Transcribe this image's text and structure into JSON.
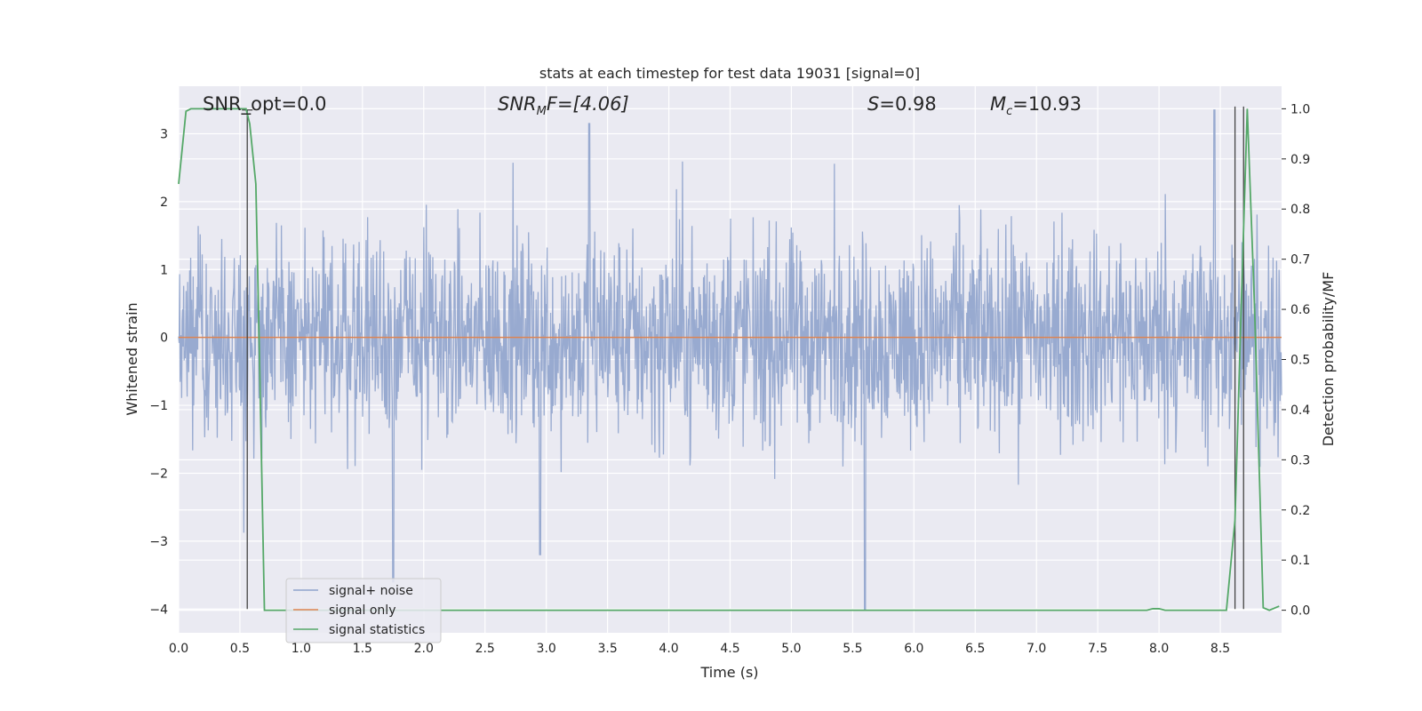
{
  "chart_data": {
    "type": "line",
    "title": "stats at each timestep for test data 19031 [signal=0]",
    "xlabel": "Time (s)",
    "ylabel": "Whitened strain",
    "y2label": "Detection probability/MF",
    "xlim": [
      0.0,
      9.0
    ],
    "ylim": [
      -4.35,
      3.7
    ],
    "y2lim": [
      -0.045,
      1.045
    ],
    "x_ticks": [
      "0.0",
      "0.5",
      "1.0",
      "1.5",
      "2.0",
      "2.5",
      "3.0",
      "3.5",
      "4.0",
      "4.5",
      "5.0",
      "5.5",
      "6.0",
      "6.5",
      "7.0",
      "7.5",
      "8.0",
      "8.5"
    ],
    "y_ticks": [
      "3",
      "2",
      "1",
      "0",
      "−1",
      "−2",
      "−3",
      "−4"
    ],
    "y2_ticks": [
      "1.0",
      "0.9",
      "0.8",
      "0.7",
      "0.6",
      "0.5",
      "0.4",
      "0.3",
      "0.2",
      "0.1",
      "0.0"
    ],
    "grid": true,
    "legend_position": "lower-left",
    "annotations": {
      "snr_opt": "SNR_opt=0.0",
      "snr_mf_base": "SNR",
      "snr_mf_sub": "M",
      "snr_mf_rest": "F=[4.06]",
      "s_base": "S",
      "s_rest": "=0.98",
      "mc_base": "M",
      "mc_sub": "c",
      "mc_rest": "=10.93"
    },
    "series": [
      {
        "name": "signal+ noise",
        "color": "#8fa3cc",
        "style": "dense-noise",
        "envelope_typical": [
          -1.8,
          1.8
        ],
        "peaks": [
          {
            "x": 1.75,
            "y": -3.6
          },
          {
            "x": 2.95,
            "y": -3.2
          },
          {
            "x": 3.35,
            "y": 3.15
          },
          {
            "x": 5.6,
            "y": -4.0
          },
          {
            "x": 8.45,
            "y": 3.35
          }
        ]
      },
      {
        "name": "signal only",
        "color": "#dd8452",
        "x": [
          0.0,
          9.0
        ],
        "y": [
          0.0,
          0.0
        ]
      },
      {
        "name": "signal statistics",
        "color": "#55a868",
        "axis": "right",
        "x": [
          0.0,
          0.06,
          0.1,
          0.2,
          0.3,
          0.4,
          0.5,
          0.55,
          0.58,
          0.63,
          0.66,
          0.7,
          1.0,
          2.0,
          3.0,
          4.0,
          5.0,
          6.0,
          7.0,
          7.9,
          7.95,
          8.0,
          8.05,
          8.2,
          8.4,
          8.55,
          8.62,
          8.67,
          8.72,
          8.78,
          8.85,
          8.9,
          8.93,
          8.98
        ],
        "y": [
          0.85,
          0.995,
          1.0,
          1.0,
          1.0,
          1.0,
          1.0,
          1.0,
          0.97,
          0.85,
          0.5,
          0.0,
          0.0,
          0.0,
          0.0,
          0.0,
          0.0,
          0.0,
          0.0,
          0.0,
          0.003,
          0.003,
          0.0,
          0.0,
          0.0,
          0.0,
          0.18,
          0.6,
          1.0,
          0.6,
          0.005,
          0.0,
          0.003,
          0.008
        ]
      }
    ],
    "vertical_markers": [
      {
        "x": 0.56,
        "ymin": -4.0,
        "ymax": 3.35
      },
      {
        "x": 8.62,
        "ymin": -4.0,
        "ymax": 3.4
      },
      {
        "x": 8.69,
        "ymin": -4.0,
        "ymax": 3.4
      }
    ]
  }
}
